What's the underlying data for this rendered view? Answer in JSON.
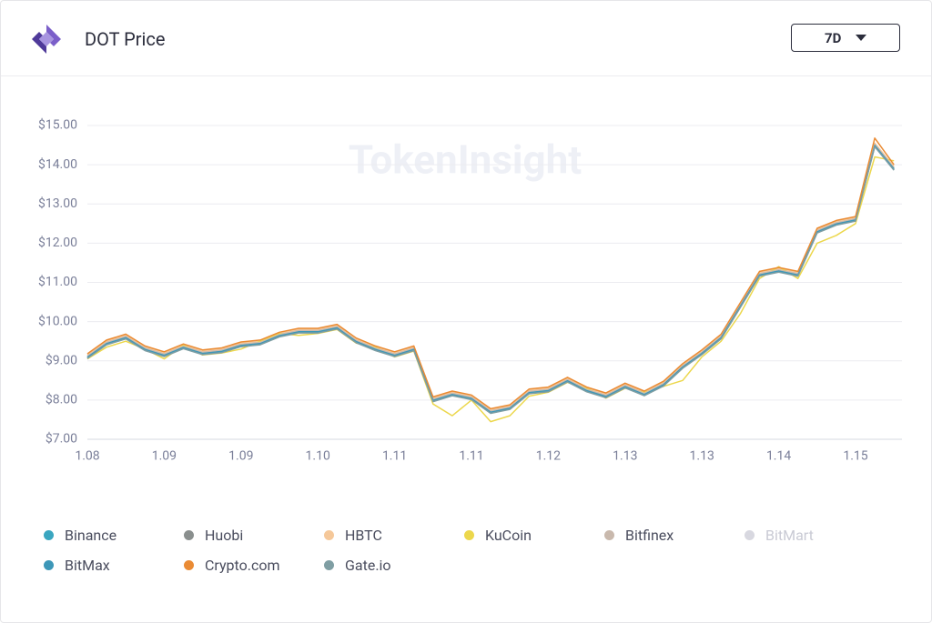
{
  "header": {
    "title": "DOT Price",
    "range": "7D"
  },
  "watermark": "TokenInsight",
  "chart_data": {
    "type": "line",
    "categories": [
      "1.08",
      null,
      null,
      null,
      "1.09",
      null,
      null,
      null,
      "1.09",
      null,
      null,
      null,
      "1.10",
      null,
      null,
      null,
      "1.11",
      null,
      null,
      null,
      "1.11",
      null,
      null,
      null,
      "1.12",
      null,
      null,
      null,
      "1.13",
      null,
      null,
      null,
      "1.13",
      null,
      null,
      null,
      "1.14",
      null,
      null,
      null,
      "1.15",
      null,
      null
    ],
    "ylim": [
      7,
      15
    ],
    "yticks": [
      {
        "value": 7,
        "label": "$7.00"
      },
      {
        "value": 8,
        "label": "$8.00"
      },
      {
        "value": 9,
        "label": "$9.00"
      },
      {
        "value": 10,
        "label": "$10.00"
      },
      {
        "value": 11,
        "label": "$11.00"
      },
      {
        "value": 12,
        "label": "$12.00"
      },
      {
        "value": 13,
        "label": "$13.00"
      },
      {
        "value": 14,
        "label": "$14.00"
      },
      {
        "value": 15,
        "label": "$15.00"
      }
    ],
    "grid": true,
    "series": [
      {
        "name": "Binance",
        "color": "#3aa6c0",
        "visible": true,
        "values": [
          9.1,
          9.45,
          9.6,
          9.3,
          9.15,
          9.35,
          9.2,
          9.25,
          9.4,
          9.45,
          9.65,
          9.75,
          9.75,
          9.85,
          9.5,
          9.3,
          9.15,
          9.3,
          8.0,
          8.15,
          8.05,
          7.7,
          7.8,
          8.2,
          8.25,
          8.5,
          8.25,
          8.1,
          8.35,
          8.15,
          8.4,
          8.85,
          9.2,
          9.6,
          10.4,
          11.2,
          11.3,
          11.2,
          12.3,
          12.5,
          12.6,
          14.5,
          13.9
        ]
      },
      {
        "name": "Huobi",
        "color": "#8a8f8e",
        "visible": true,
        "values": [
          9.07,
          9.42,
          9.57,
          9.27,
          9.12,
          9.32,
          9.17,
          9.22,
          9.37,
          9.42,
          9.62,
          9.72,
          9.72,
          9.82,
          9.47,
          9.27,
          9.12,
          9.27,
          7.97,
          8.12,
          8.02,
          7.67,
          7.77,
          8.17,
          8.22,
          8.47,
          8.22,
          8.07,
          8.32,
          8.12,
          8.37,
          8.82,
          9.17,
          9.57,
          10.37,
          11.17,
          11.27,
          11.17,
          12.27,
          12.47,
          12.57,
          14.47,
          13.87
        ]
      },
      {
        "name": "HBTC",
        "color": "#f5c89a",
        "visible": true,
        "values": [
          9.15,
          9.5,
          9.65,
          9.35,
          9.2,
          9.4,
          9.25,
          9.3,
          9.45,
          9.5,
          9.7,
          9.8,
          9.8,
          9.9,
          9.55,
          9.35,
          9.2,
          9.35,
          8.05,
          8.2,
          8.1,
          7.75,
          7.85,
          8.25,
          8.3,
          8.55,
          8.3,
          8.15,
          8.4,
          8.2,
          8.45,
          8.9,
          9.25,
          9.65,
          10.45,
          11.25,
          11.35,
          11.25,
          12.35,
          12.55,
          12.65,
          14.55,
          13.95
        ]
      },
      {
        "name": "KuCoin",
        "color": "#ecd74c",
        "visible": true,
        "values": [
          9.05,
          9.35,
          9.5,
          9.3,
          9.05,
          9.4,
          9.15,
          9.2,
          9.3,
          9.5,
          9.7,
          9.65,
          9.7,
          9.8,
          9.45,
          9.35,
          9.1,
          9.25,
          7.9,
          7.6,
          8.0,
          7.45,
          7.6,
          8.1,
          8.2,
          8.45,
          8.3,
          8.05,
          8.3,
          8.2,
          8.35,
          8.5,
          9.1,
          9.5,
          10.2,
          11.1,
          11.4,
          11.1,
          12.0,
          12.2,
          12.5,
          14.2,
          14.1
        ]
      },
      {
        "name": "Bitfinex",
        "color": "#c9b9ad",
        "visible": true,
        "values": [
          9.12,
          9.47,
          9.62,
          9.32,
          9.17,
          9.37,
          9.22,
          9.27,
          9.42,
          9.47,
          9.67,
          9.77,
          9.77,
          9.87,
          9.52,
          9.32,
          9.17,
          9.32,
          8.02,
          8.17,
          8.07,
          7.72,
          7.82,
          8.22,
          8.27,
          8.52,
          8.27,
          8.12,
          8.37,
          8.17,
          8.42,
          8.87,
          9.22,
          9.62,
          10.42,
          11.22,
          11.32,
          11.22,
          12.32,
          12.52,
          12.62,
          14.52,
          13.92
        ]
      },
      {
        "name": "BitMart",
        "color": "#d8d8e0",
        "visible": false,
        "values": [
          null,
          null,
          null,
          null,
          null,
          null,
          null,
          null,
          null,
          null,
          null,
          null,
          null,
          null,
          null,
          null,
          null,
          null,
          null,
          null,
          null,
          null,
          null,
          null,
          null,
          null,
          null,
          null,
          null,
          null,
          null,
          null,
          null,
          null,
          null,
          null,
          null,
          null,
          null,
          null,
          null,
          null,
          null
        ]
      },
      {
        "name": "BitMax",
        "color": "#3d97b8",
        "visible": true,
        "values": [
          9.09,
          9.44,
          9.59,
          9.29,
          9.14,
          9.34,
          9.19,
          9.24,
          9.39,
          9.44,
          9.64,
          9.74,
          9.74,
          9.84,
          9.49,
          9.29,
          9.14,
          9.29,
          7.99,
          8.14,
          8.04,
          7.69,
          7.79,
          8.19,
          8.24,
          8.49,
          8.24,
          8.09,
          8.34,
          8.14,
          8.39,
          8.84,
          9.19,
          9.59,
          10.39,
          11.19,
          11.29,
          11.19,
          12.29,
          12.49,
          12.59,
          14.49,
          13.89
        ]
      },
      {
        "name": "Crypto.com",
        "color": "#ea8b34",
        "visible": true,
        "values": [
          9.18,
          9.53,
          9.68,
          9.38,
          9.23,
          9.43,
          9.28,
          9.33,
          9.48,
          9.53,
          9.73,
          9.83,
          9.83,
          9.93,
          9.58,
          9.38,
          9.23,
          9.38,
          8.08,
          8.23,
          8.13,
          7.78,
          7.88,
          8.28,
          8.33,
          8.58,
          8.33,
          8.18,
          8.43,
          8.23,
          8.48,
          8.93,
          9.28,
          9.68,
          10.48,
          11.28,
          11.38,
          11.28,
          12.38,
          12.58,
          12.68,
          14.68,
          14.0
        ]
      },
      {
        "name": "Gate.io",
        "color": "#7f9ea3",
        "visible": true,
        "values": [
          9.06,
          9.41,
          9.56,
          9.26,
          9.11,
          9.31,
          9.16,
          9.21,
          9.36,
          9.41,
          9.61,
          9.71,
          9.71,
          9.81,
          9.46,
          9.26,
          9.11,
          9.26,
          7.96,
          8.11,
          8.01,
          7.66,
          7.76,
          8.16,
          8.21,
          8.46,
          8.21,
          8.06,
          8.31,
          8.11,
          8.36,
          8.81,
          9.16,
          9.56,
          10.36,
          11.16,
          11.26,
          11.16,
          12.26,
          12.46,
          12.56,
          14.46,
          13.86
        ]
      }
    ]
  }
}
